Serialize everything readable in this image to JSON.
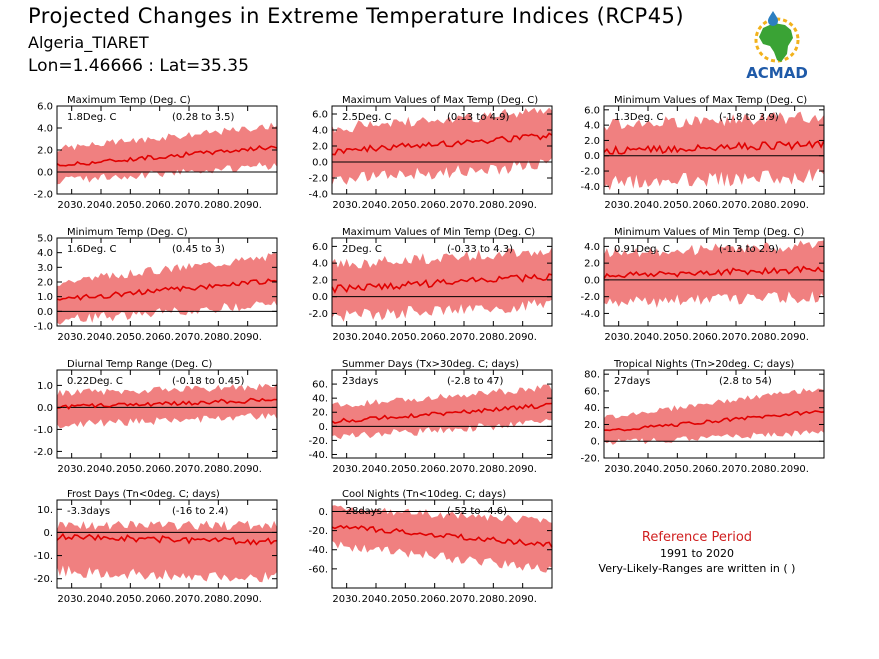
{
  "header": {
    "title": "Projected Changes in Extreme Temperature Indices (RCP45)",
    "location": "Algeria_TIARET",
    "coords": "Lon=1.46666 : Lat=35.35"
  },
  "logo": {
    "text": "ACMAD",
    "colors": {
      "africa": "#3aa335",
      "sun": "#f2b21c",
      "drop": "#2d7fc1",
      "text": "#1f5aa8"
    }
  },
  "legend": {
    "title": "Reference Period",
    "period": "1991 to 2020",
    "note": "Very-Likely-Ranges are written in ( )"
  },
  "colors": {
    "band": "#f08080",
    "line": "#e00000",
    "zero": "#000000"
  },
  "chart_data": [
    {
      "id": "tx",
      "type": "area",
      "title": "Maximum Temp (Deg. C)",
      "summary": "1.8Deg. C",
      "range": "(0.28 to 3.5)",
      "x_ticks": [
        "2030.",
        "2040.",
        "2050.",
        "2060.",
        "2070.",
        "2080.",
        "2090."
      ],
      "x_range": [
        2025,
        2100
      ],
      "ylim": [
        -2,
        6
      ],
      "y_ticks": [
        "6.0",
        "4.0",
        "2.0",
        "0.0",
        "-2.0"
      ],
      "y_tick_values": [
        6,
        4,
        2,
        0,
        -2
      ],
      "series": [
        {
          "x_start": 2025,
          "mean": [
            0.6,
            2.3
          ],
          "low": [
            -0.4,
            1.0
          ],
          "high": [
            1.8,
            3.9
          ]
        }
      ]
    },
    {
      "id": "txx",
      "type": "area",
      "title": "Maximum Values of Max Temp (Deg. C)",
      "summary": "2.5Deg. C",
      "range": "(0.13 to 4.9)",
      "x_ticks": [
        "2030.",
        "2040.",
        "2050.",
        "2060.",
        "2070.",
        "2080.",
        "2090."
      ],
      "x_range": [
        2025,
        2100
      ],
      "ylim": [
        -4,
        7
      ],
      "y_ticks": [
        "6.0",
        "4.0",
        "2.0",
        "0.0",
        "-2.0",
        "-4.0"
      ],
      "y_tick_values": [
        6,
        4,
        2,
        0,
        -2,
        -4
      ],
      "series": [
        {
          "x_start": 2025,
          "mean": [
            1.3,
            3.3
          ],
          "low": [
            -1.5,
            0.6
          ],
          "high": [
            3.5,
            5.6
          ]
        }
      ]
    },
    {
      "id": "txn",
      "type": "area",
      "title": "Minimum Values of Max Temp (Deg. C)",
      "summary": "1.3Deg. C",
      "range": "(-1.8 to 3.9)",
      "x_ticks": [
        "2030.",
        "2040.",
        "2050.",
        "2060.",
        "2070.",
        "2080.",
        "2090."
      ],
      "x_range": [
        2025,
        2100
      ],
      "ylim": [
        -5,
        6.5
      ],
      "y_ticks": [
        "6.0",
        "4.0",
        "2.0",
        "0.0",
        "-2.0",
        "-4.0"
      ],
      "y_tick_values": [
        6,
        4,
        2,
        0,
        -2,
        -4
      ],
      "series": [
        {
          "x_start": 2025,
          "mean": [
            0.6,
            1.5
          ],
          "low": [
            -2.6,
            -1.6
          ],
          "high": [
            3.2,
            4.3
          ]
        }
      ]
    },
    {
      "id": "tn",
      "type": "area",
      "title": "Minimum Temp (Deg. C)",
      "summary": "1.6Deg. C",
      "range": "(0.45 to 3)",
      "x_ticks": [
        "2030.",
        "2040.",
        "2050.",
        "2060.",
        "2070.",
        "2080.",
        "2090."
      ],
      "x_range": [
        2025,
        2100
      ],
      "ylim": [
        -1,
        5
      ],
      "y_ticks": [
        "5.0",
        "4.0",
        "3.0",
        "2.0",
        "1.0",
        "0.0",
        "-1.0"
      ],
      "y_tick_values": [
        5,
        4,
        3,
        2,
        1,
        0,
        -1
      ],
      "series": [
        {
          "x_start": 2025,
          "mean": [
            0.8,
            2.1
          ],
          "low": [
            -0.3,
            0.9
          ],
          "high": [
            1.7,
            3.5
          ]
        }
      ]
    },
    {
      "id": "tnx",
      "type": "area",
      "title": "Maximum Values of Min Temp (Deg. C)",
      "summary": "2Deg. C",
      "range": "(-0.33 to 4.3)",
      "x_ticks": [
        "2030.",
        "2040.",
        "2050.",
        "2060.",
        "2070.",
        "2080.",
        "2090."
      ],
      "x_range": [
        2025,
        2100
      ],
      "ylim": [
        -3.5,
        7
      ],
      "y_ticks": [
        "6.0",
        "4.0",
        "2.0",
        "0.0",
        "-2.0"
      ],
      "y_tick_values": [
        6,
        4,
        2,
        0,
        -2
      ],
      "series": [
        {
          "x_start": 2025,
          "mean": [
            0.9,
            2.4
          ],
          "low": [
            -1.6,
            -0.1
          ],
          "high": [
            3.1,
            4.8
          ]
        }
      ]
    },
    {
      "id": "tnn",
      "type": "area",
      "title": "Minimum Values of Min Temp (Deg. C)",
      "summary": "0.91Deg. C",
      "range": "(-1.3 to 2.9)",
      "x_ticks": [
        "2030.",
        "2040.",
        "2050.",
        "2060.",
        "2070.",
        "2080.",
        "2090."
      ],
      "x_range": [
        2025,
        2100
      ],
      "ylim": [
        -5.5,
        5
      ],
      "y_ticks": [
        "4.0",
        "2.0",
        "0.0",
        "-2.0",
        "-4.0"
      ],
      "y_tick_values": [
        4,
        2,
        0,
        -2,
        -4
      ],
      "series": [
        {
          "x_start": 2025,
          "mean": [
            0.5,
            1.3
          ],
          "low": [
            -2.0,
            -1.2
          ],
          "high": [
            2.5,
            3.5
          ]
        }
      ]
    },
    {
      "id": "dtr",
      "type": "area",
      "title": "Diurnal Temp Range (Deg. C)",
      "summary": "0.22Deg. C",
      "range": "(-0.18 to 0.45)",
      "x_ticks": [
        "2030.",
        "2040.",
        "2050.",
        "2060.",
        "2070.",
        "2080.",
        "2090."
      ],
      "x_range": [
        2025,
        2100
      ],
      "ylim": [
        -2.3,
        1.7
      ],
      "y_ticks": [
        "1.0",
        "0.0",
        "-1.0",
        "-2.0"
      ],
      "y_tick_values": [
        1,
        0,
        -1,
        -2
      ],
      "series": [
        {
          "x_start": 2025,
          "mean": [
            0.0,
            0.35
          ],
          "low": [
            -0.6,
            -0.2
          ],
          "high": [
            0.5,
            0.8
          ]
        }
      ]
    },
    {
      "id": "su",
      "type": "area",
      "title": "Summer Days (Tx>30deg. C; days)",
      "summary": "23days",
      "range": "(-2.8 to 47)",
      "x_ticks": [
        "2030.",
        "2040.",
        "2050.",
        "2060.",
        "2070.",
        "2080.",
        "2090."
      ],
      "x_range": [
        2025,
        2100
      ],
      "ylim": [
        -45,
        80
      ],
      "y_ticks": [
        "60.",
        "40.",
        "20.",
        "0.",
        "-20.",
        "-40."
      ],
      "y_tick_values": [
        60,
        40,
        20,
        0,
        -20,
        -40
      ],
      "series": [
        {
          "x_start": 2025,
          "mean": [
            7,
            30
          ],
          "low": [
            -10,
            12
          ],
          "high": [
            24,
            50
          ]
        }
      ]
    },
    {
      "id": "tr",
      "type": "area",
      "title": "Tropical Nights (Tn>20deg. C; days)",
      "summary": "27days",
      "range": "(2.8 to 54)",
      "x_ticks": [
        "2030.",
        "2040.",
        "2050.",
        "2060.",
        "2070.",
        "2080.",
        "2090."
      ],
      "x_range": [
        2025,
        2100
      ],
      "ylim": [
        -20,
        85
      ],
      "y_ticks": [
        "80.",
        "60.",
        "40.",
        "20.",
        "0.",
        "-20."
      ],
      "y_tick_values": [
        80,
        60,
        40,
        20,
        0,
        -20
      ],
      "series": [
        {
          "x_start": 2025,
          "mean": [
            12,
            36
          ],
          "low": [
            2,
            15
          ],
          "high": [
            25,
            60
          ]
        }
      ]
    },
    {
      "id": "fd",
      "type": "area",
      "title": "Frost Days (Tn<0deg. C; days)",
      "summary": "-3.3days",
      "range": "(-16 to 2.4)",
      "x_ticks": [
        "2030.",
        "2040.",
        "2050.",
        "2060.",
        "2070.",
        "2080.",
        "2090."
      ],
      "x_range": [
        2025,
        2100
      ],
      "ylim": [
        -24,
        14
      ],
      "y_ticks": [
        "10.",
        "0.",
        "-10.",
        "-20."
      ],
      "y_tick_values": [
        10,
        0,
        -10,
        -20
      ],
      "series": [
        {
          "x_start": 2025,
          "mean": [
            -2,
            -4
          ],
          "low": [
            -14,
            -17
          ],
          "high": [
            1,
            1
          ]
        }
      ]
    },
    {
      "id": "tn10p",
      "type": "area",
      "title": "Cool Nights (Tn<10deg. C; days)",
      "summary": "-28days",
      "range": "(-52 to -4.6)",
      "x_ticks": [
        "2030.",
        "2040.",
        "2050.",
        "2060.",
        "2070.",
        "2080.",
        "2090."
      ],
      "x_range": [
        2025,
        2100
      ],
      "ylim": [
        -80,
        12
      ],
      "y_ticks": [
        "0.",
        "-20.",
        "-40.",
        "-60."
      ],
      "y_tick_values": [
        0,
        -20,
        -40,
        -60
      ],
      "series": [
        {
          "x_start": 2025,
          "mean": [
            -15,
            -35
          ],
          "low": [
            -30,
            -55
          ],
          "high": [
            0,
            -15
          ]
        }
      ]
    }
  ]
}
